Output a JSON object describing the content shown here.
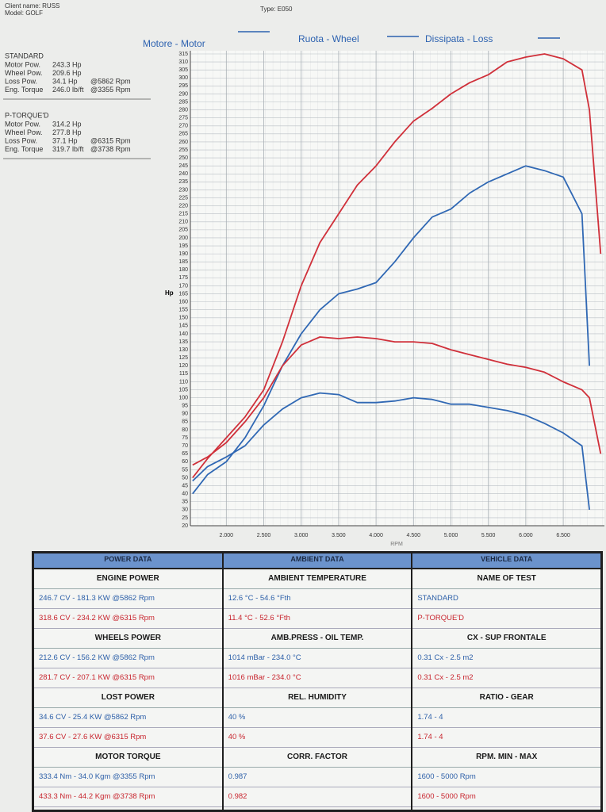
{
  "header": {
    "client": "Client name: RUSS",
    "model": "Model: GOLF",
    "type": "Type: E050"
  },
  "summary": [
    {
      "title": "STANDARD",
      "color": "#2c5fa8",
      "lines": [
        [
          "Motor Pow.",
          "243.3 Hp"
        ],
        [
          "Wheel Pow.",
          "209.6 Hp"
        ],
        [
          "Loss Pow.",
          "34.1 Hp",
          "@5862 Rpm"
        ],
        [
          "Eng. Torque",
          "246.0 lb/ft",
          "@3355 Rpm"
        ]
      ]
    },
    {
      "title": "P-TORQUE'D",
      "color": "#c8252e",
      "lines": [
        [
          "Motor Pow.",
          "314.2 Hp"
        ],
        [
          "Wheel Pow.",
          "277.8 Hp"
        ],
        [
          "Loss Pow.",
          "37.1 Hp",
          "@6315 Rpm"
        ],
        [
          "Eng. Torque",
          "319.7 lb/ft",
          "@3738 Rpm"
        ]
      ]
    }
  ],
  "chart_data": {
    "type": "line",
    "legend": [
      "Motore - Motor",
      "Ruota - Wheel",
      "Dissipata - Loss"
    ],
    "y_label": "Hp",
    "x_label": "RPM",
    "x": [
      1550,
      1750,
      2000,
      2250,
      2500,
      2750,
      3000,
      3250,
      3500,
      3750,
      4000,
      4250,
      4500,
      4750,
      5000,
      5250,
      5500,
      5750,
      6000,
      6250,
      6500,
      6750,
      6850,
      7000
    ],
    "series": [
      {
        "color": "#d0303a",
        "values": [
          50,
          62,
          75,
          88,
          105,
          135,
          170,
          197,
          215,
          233,
          245,
          260,
          273,
          281,
          290,
          297,
          302,
          310,
          313,
          315,
          312,
          305,
          280,
          190
        ]
      },
      {
        "color": "#3068b4",
        "values": [
          40,
          52,
          60,
          75,
          95,
          120,
          140,
          155,
          165,
          168,
          172,
          185,
          200,
          213,
          218,
          228,
          235,
          240,
          245,
          242,
          238,
          215,
          120,
          null
        ]
      },
      {
        "color": "#d0303a",
        "values": [
          58,
          63,
          72,
          85,
          100,
          120,
          133,
          138,
          137,
          138,
          137,
          135,
          135,
          134,
          130,
          127,
          124,
          121,
          119,
          116,
          110,
          105,
          100,
          65
        ]
      },
      {
        "color": "#3068b4",
        "values": [
          48,
          57,
          63,
          70,
          83,
          93,
          100,
          103,
          102,
          97,
          97,
          98,
          100,
          99,
          96,
          96,
          94,
          92,
          89,
          84,
          78,
          70,
          30,
          null
        ]
      }
    ],
    "xlim": [
      1520,
      7050
    ],
    "ylim": [
      20,
      315
    ],
    "xticks": [
      {
        "value": 2000,
        "label": "2.000"
      },
      {
        "value": 2500,
        "label": "2.500"
      },
      {
        "value": 3000,
        "label": "3.000"
      },
      {
        "value": 3500,
        "label": "3.500"
      },
      {
        "value": 4000,
        "label": "4.000"
      },
      {
        "value": 4500,
        "label": "4.500"
      },
      {
        "value": 5000,
        "label": "5.000"
      },
      {
        "value": 5500,
        "label": "5.500"
      },
      {
        "value": 6000,
        "label": "6.000"
      },
      {
        "value": 6500,
        "label": "6.500"
      }
    ],
    "yticks": [
      20,
      25,
      30,
      35,
      40,
      45,
      50,
      55,
      60,
      65,
      70,
      75,
      80,
      85,
      90,
      95,
      100,
      105,
      110,
      115,
      120,
      125,
      130,
      135,
      140,
      145,
      150,
      155,
      160,
      165,
      170,
      175,
      180,
      185,
      190,
      195,
      200,
      205,
      210,
      215,
      220,
      225,
      230,
      235,
      240,
      245,
      250,
      255,
      260,
      265,
      270,
      275,
      280,
      285,
      290,
      295,
      300,
      305,
      310,
      315
    ],
    "grid": true
  },
  "table": {
    "headers": [
      "POWER DATA",
      "AMBIENT DATA",
      "VEHICLE DATA"
    ],
    "columns": [
      [
        {
          "title": "ENGINE POWER",
          "rows": [
            "246.7 CV - 181.3 KW  @5862 Rpm",
            "318.6 CV - 234.2 KW  @6315 Rpm"
          ]
        },
        {
          "title": "WHEELS POWER",
          "rows": [
            "212.6 CV - 156.2 KW  @5862 Rpm",
            "281.7 CV - 207.1 KW  @6315 Rpm"
          ]
        },
        {
          "title": "LOST POWER",
          "rows": [
            "34.6 CV - 25.4 KW  @5862 Rpm",
            "37.6 CV - 27.6 KW  @6315 Rpm"
          ]
        },
        {
          "title": "MOTOR TORQUE",
          "rows": [
            "333.4 Nm - 34.0 Kgm  @3355 Rpm",
            "433.3 Nm - 44.2 Kgm  @3738 Rpm"
          ]
        }
      ],
      [
        {
          "title": "AMBIENT TEMPERATURE",
          "rows": [
            "12.6 °C - 54.6 °Fth",
            "11.4 °C - 52.6 °Fth"
          ]
        },
        {
          "title": "AMB.PRESS - OIL TEMP.",
          "rows": [
            "1014 mBar - 234.0 °C",
            "1016 mBar - 234.0 °C"
          ]
        },
        {
          "title": "REL. HUMIDITY",
          "rows": [
            "40 %",
            "40 %"
          ]
        },
        {
          "title": "CORR. FACTOR",
          "rows": [
            "0.987",
            "0.982"
          ]
        }
      ],
      [
        {
          "title": "NAME OF TEST",
          "rows": [
            "STANDARD",
            "P-TORQUE'D"
          ]
        },
        {
          "title": "CX - SUP FRONTALE",
          "rows": [
            "0.31 Cx - 2.5 m2",
            "0.31 Cx - 2.5 m2"
          ]
        },
        {
          "title": "RATIO - GEAR",
          "rows": [
            "1.74 - 4",
            "1.74 - 4"
          ]
        },
        {
          "title": "RPM. MIN - MAX",
          "rows": [
            "1600 - 5000 Rpm",
            "1600 - 5000 Rpm"
          ]
        }
      ]
    ]
  }
}
